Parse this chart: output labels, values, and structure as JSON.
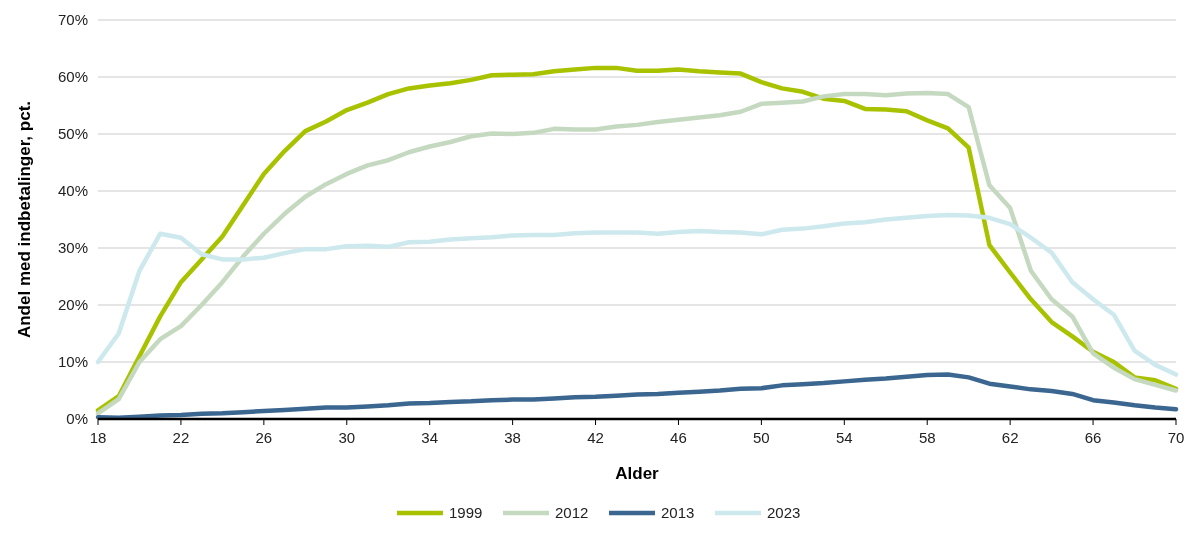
{
  "chart_data": {
    "type": "line",
    "xlabel": "Alder",
    "ylabel": "Andel med indbetalinger, pct.",
    "x": [
      18,
      19,
      20,
      21,
      22,
      23,
      24,
      25,
      26,
      27,
      28,
      29,
      30,
      31,
      32,
      33,
      34,
      35,
      36,
      37,
      38,
      39,
      40,
      41,
      42,
      43,
      44,
      45,
      46,
      47,
      48,
      49,
      50,
      51,
      52,
      53,
      54,
      55,
      56,
      57,
      58,
      59,
      60,
      61,
      62,
      63,
      64,
      65,
      66,
      67,
      68,
      69,
      70
    ],
    "xlim": [
      18,
      70
    ],
    "xticks": [
      18,
      22,
      26,
      30,
      34,
      38,
      42,
      46,
      50,
      54,
      58,
      62,
      66,
      70
    ],
    "ylim": [
      0,
      70
    ],
    "yticks": [
      {
        "value": 0,
        "label": "0%"
      },
      {
        "value": 10,
        "label": "10%"
      },
      {
        "value": 20,
        "label": "20%"
      },
      {
        "value": 30,
        "label": "30%"
      },
      {
        "value": 40,
        "label": "40%"
      },
      {
        "value": 50,
        "label": "50%"
      },
      {
        "value": 60,
        "label": "60%"
      },
      {
        "value": 70,
        "label": "70%"
      }
    ],
    "grid": "y",
    "legend": "bottom",
    "line_style": "solid",
    "marker": "none",
    "series": [
      {
        "name": "1999",
        "color": "#a9c200",
        "values": [
          1.5,
          4,
          11,
          18,
          24,
          28,
          32,
          37.5,
          43,
          47,
          50.5,
          52.2,
          54.2,
          55.5,
          57,
          58,
          58.5,
          58.9,
          59.5,
          60.3,
          60.4,
          60.5,
          61,
          61.3,
          61.6,
          61.6,
          61.1,
          61.1,
          61.3,
          61,
          60.8,
          60.6,
          59.1,
          58,
          57.4,
          56.2,
          55.8,
          54.4,
          54.3,
          54,
          52.4,
          51,
          47.6,
          30.5,
          25.7,
          21,
          17,
          14.5,
          11.8,
          10,
          7.3,
          6.8,
          5.3
        ]
      },
      {
        "name": "2012",
        "color": "#c5d9c0",
        "values": [
          1,
          3.5,
          10,
          14,
          16.3,
          20,
          24,
          28.5,
          32.5,
          36,
          39,
          41.2,
          43,
          44.5,
          45.4,
          46.8,
          47.8,
          48.6,
          49.6,
          50.1,
          50,
          50.2,
          50.9,
          50.8,
          50.8,
          51.3,
          51.6,
          52.1,
          52.5,
          52.9,
          53.3,
          53.9,
          55.3,
          55.5,
          55.7,
          56.6,
          57,
          57,
          56.8,
          57.1,
          57.2,
          57,
          54.7,
          41,
          37,
          26,
          21,
          18,
          11.5,
          9,
          7,
          6,
          5
        ]
      },
      {
        "name": "2013",
        "color": "#3a6690",
        "values": [
          0.3,
          0.2,
          0.4,
          0.6,
          0.7,
          0.9,
          1,
          1.2,
          1.4,
          1.6,
          1.8,
          2,
          2,
          2.2,
          2.4,
          2.7,
          2.8,
          3,
          3.1,
          3.3,
          3.4,
          3.4,
          3.6,
          3.8,
          3.9,
          4.1,
          4.3,
          4.4,
          4.6,
          4.8,
          5,
          5.3,
          5.4,
          5.9,
          6.1,
          6.3,
          6.6,
          6.9,
          7.1,
          7.4,
          7.7,
          7.8,
          7.3,
          6.2,
          5.7,
          5.2,
          4.9,
          4.4,
          3.3,
          2.9,
          2.4,
          2,
          1.7
        ]
      },
      {
        "name": "2023",
        "color": "#cde9ee",
        "values": [
          10,
          15,
          26,
          32.5,
          31.8,
          28.9,
          28,
          28,
          28.3,
          29.1,
          29.8,
          29.8,
          30.3,
          30.4,
          30.2,
          31,
          31.1,
          31.5,
          31.7,
          31.9,
          32.2,
          32.3,
          32.3,
          32.6,
          32.7,
          32.7,
          32.7,
          32.5,
          32.8,
          33,
          32.8,
          32.7,
          32.4,
          33.2,
          33.4,
          33.8,
          34.3,
          34.5,
          35,
          35.3,
          35.6,
          35.8,
          35.7,
          35.3,
          34.2,
          31.8,
          29.2,
          24,
          21,
          18.3,
          12,
          9.5,
          7.8
        ]
      }
    ]
  }
}
